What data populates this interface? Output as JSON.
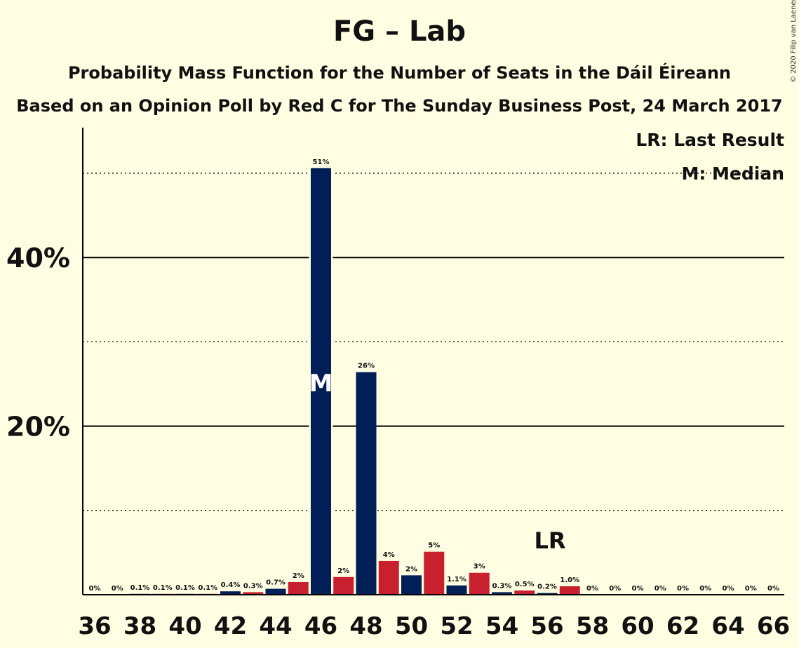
{
  "title": "FG – Lab",
  "subtitle1": "Probability Mass Function for the Number of Seats in the Dáil Éireann",
  "subtitle2": "Based on an Opinion Poll by Red C for The Sunday Business Post, 24 March 2017",
  "copyright": "© 2020 Filip van Laenen",
  "legend": {
    "last_result": "LR: Last Result",
    "median": "M: Median"
  },
  "colors": {
    "background": "#FFFDE2",
    "fg": "#001F56",
    "lab": "#C8202F"
  },
  "chart_data": {
    "type": "bar",
    "title": "FG – Lab",
    "x": [
      36,
      37,
      38,
      39,
      40,
      41,
      42,
      43,
      44,
      45,
      46,
      47,
      48,
      49,
      50,
      51,
      52,
      53,
      54,
      55,
      56,
      57,
      58,
      59,
      60,
      61,
      62,
      63,
      64,
      65,
      66
    ],
    "values": [
      0,
      0,
      0.1,
      0.1,
      0.1,
      0.1,
      0.4,
      0.3,
      0.7,
      1.5,
      50.6,
      2.1,
      26.4,
      4.0,
      2.3,
      5.1,
      1.1,
      2.6,
      0.3,
      0.5,
      0.2,
      1.0,
      0,
      0,
      0,
      0,
      0,
      0,
      0,
      0,
      0
    ],
    "labels": [
      "0%",
      "0%",
      "0.1%",
      "0.1%",
      "0.1%",
      "0.1%",
      "0.4%",
      "0.3%",
      "0.7%",
      "2%",
      "51%",
      "2%",
      "26%",
      "4%",
      "2%",
      "5%",
      "1.1%",
      "3%",
      "0.3%",
      "0.5%",
      "0.2%",
      "1.0%",
      "0%",
      "0%",
      "0%",
      "0%",
      "0%",
      "0%",
      "0%",
      "0%",
      "0%"
    ],
    "bar_colors": [
      "fg",
      "lab",
      "fg",
      "lab",
      "fg",
      "lab",
      "fg",
      "lab",
      "fg",
      "lab",
      "fg",
      "lab",
      "fg",
      "lab",
      "fg",
      "lab",
      "fg",
      "lab",
      "fg",
      "lab",
      "fg",
      "lab",
      "fg",
      "lab",
      "fg",
      "lab",
      "fg",
      "lab",
      "fg",
      "lab",
      "fg"
    ],
    "xticks": [
      "36",
      "38",
      "40",
      "42",
      "44",
      "46",
      "48",
      "50",
      "52",
      "54",
      "56",
      "58",
      "60",
      "62",
      "64",
      "66"
    ],
    "yticks": [
      {
        "value": 20,
        "label": "20%"
      },
      {
        "value": 40,
        "label": "40%"
      }
    ],
    "minor_gridlines": [
      10,
      30,
      50
    ],
    "ylim": [
      0,
      55
    ],
    "median": {
      "seat": 46,
      "marker": "M"
    },
    "last_result": {
      "seat": 56,
      "marker": "LR"
    }
  }
}
